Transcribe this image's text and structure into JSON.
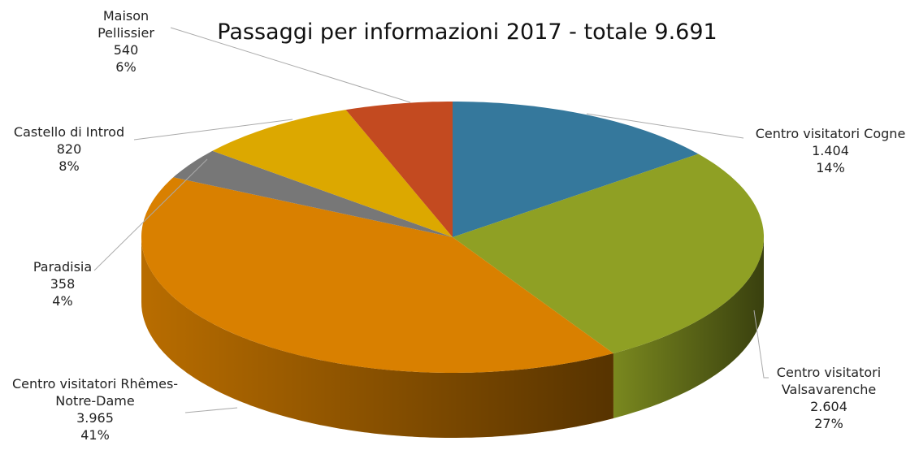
{
  "chart_data": {
    "type": "pie",
    "title": "Passaggi per informazioni 2017 - totale 9.691",
    "categories": [
      "Centro visitatori Cogne",
      "Centro visitatori Valsavarenche",
      "Centro visitatori Rhêmes-Notre-Dame",
      "Paradisia",
      "Castello di Introd",
      "Maison Pellissier"
    ],
    "values": [
      1404,
      2604,
      3965,
      358,
      820,
      540
    ],
    "value_labels": [
      "1.404",
      "2.604",
      "3.965",
      "358",
      "820",
      "540"
    ],
    "percent_labels": [
      "14%",
      "27%",
      "41%",
      "4%",
      "8%",
      "6%"
    ],
    "colors": [
      "#35789c",
      "#8fa024",
      "#d98000",
      "#777777",
      "#dca800",
      "#c34a20"
    ]
  }
}
